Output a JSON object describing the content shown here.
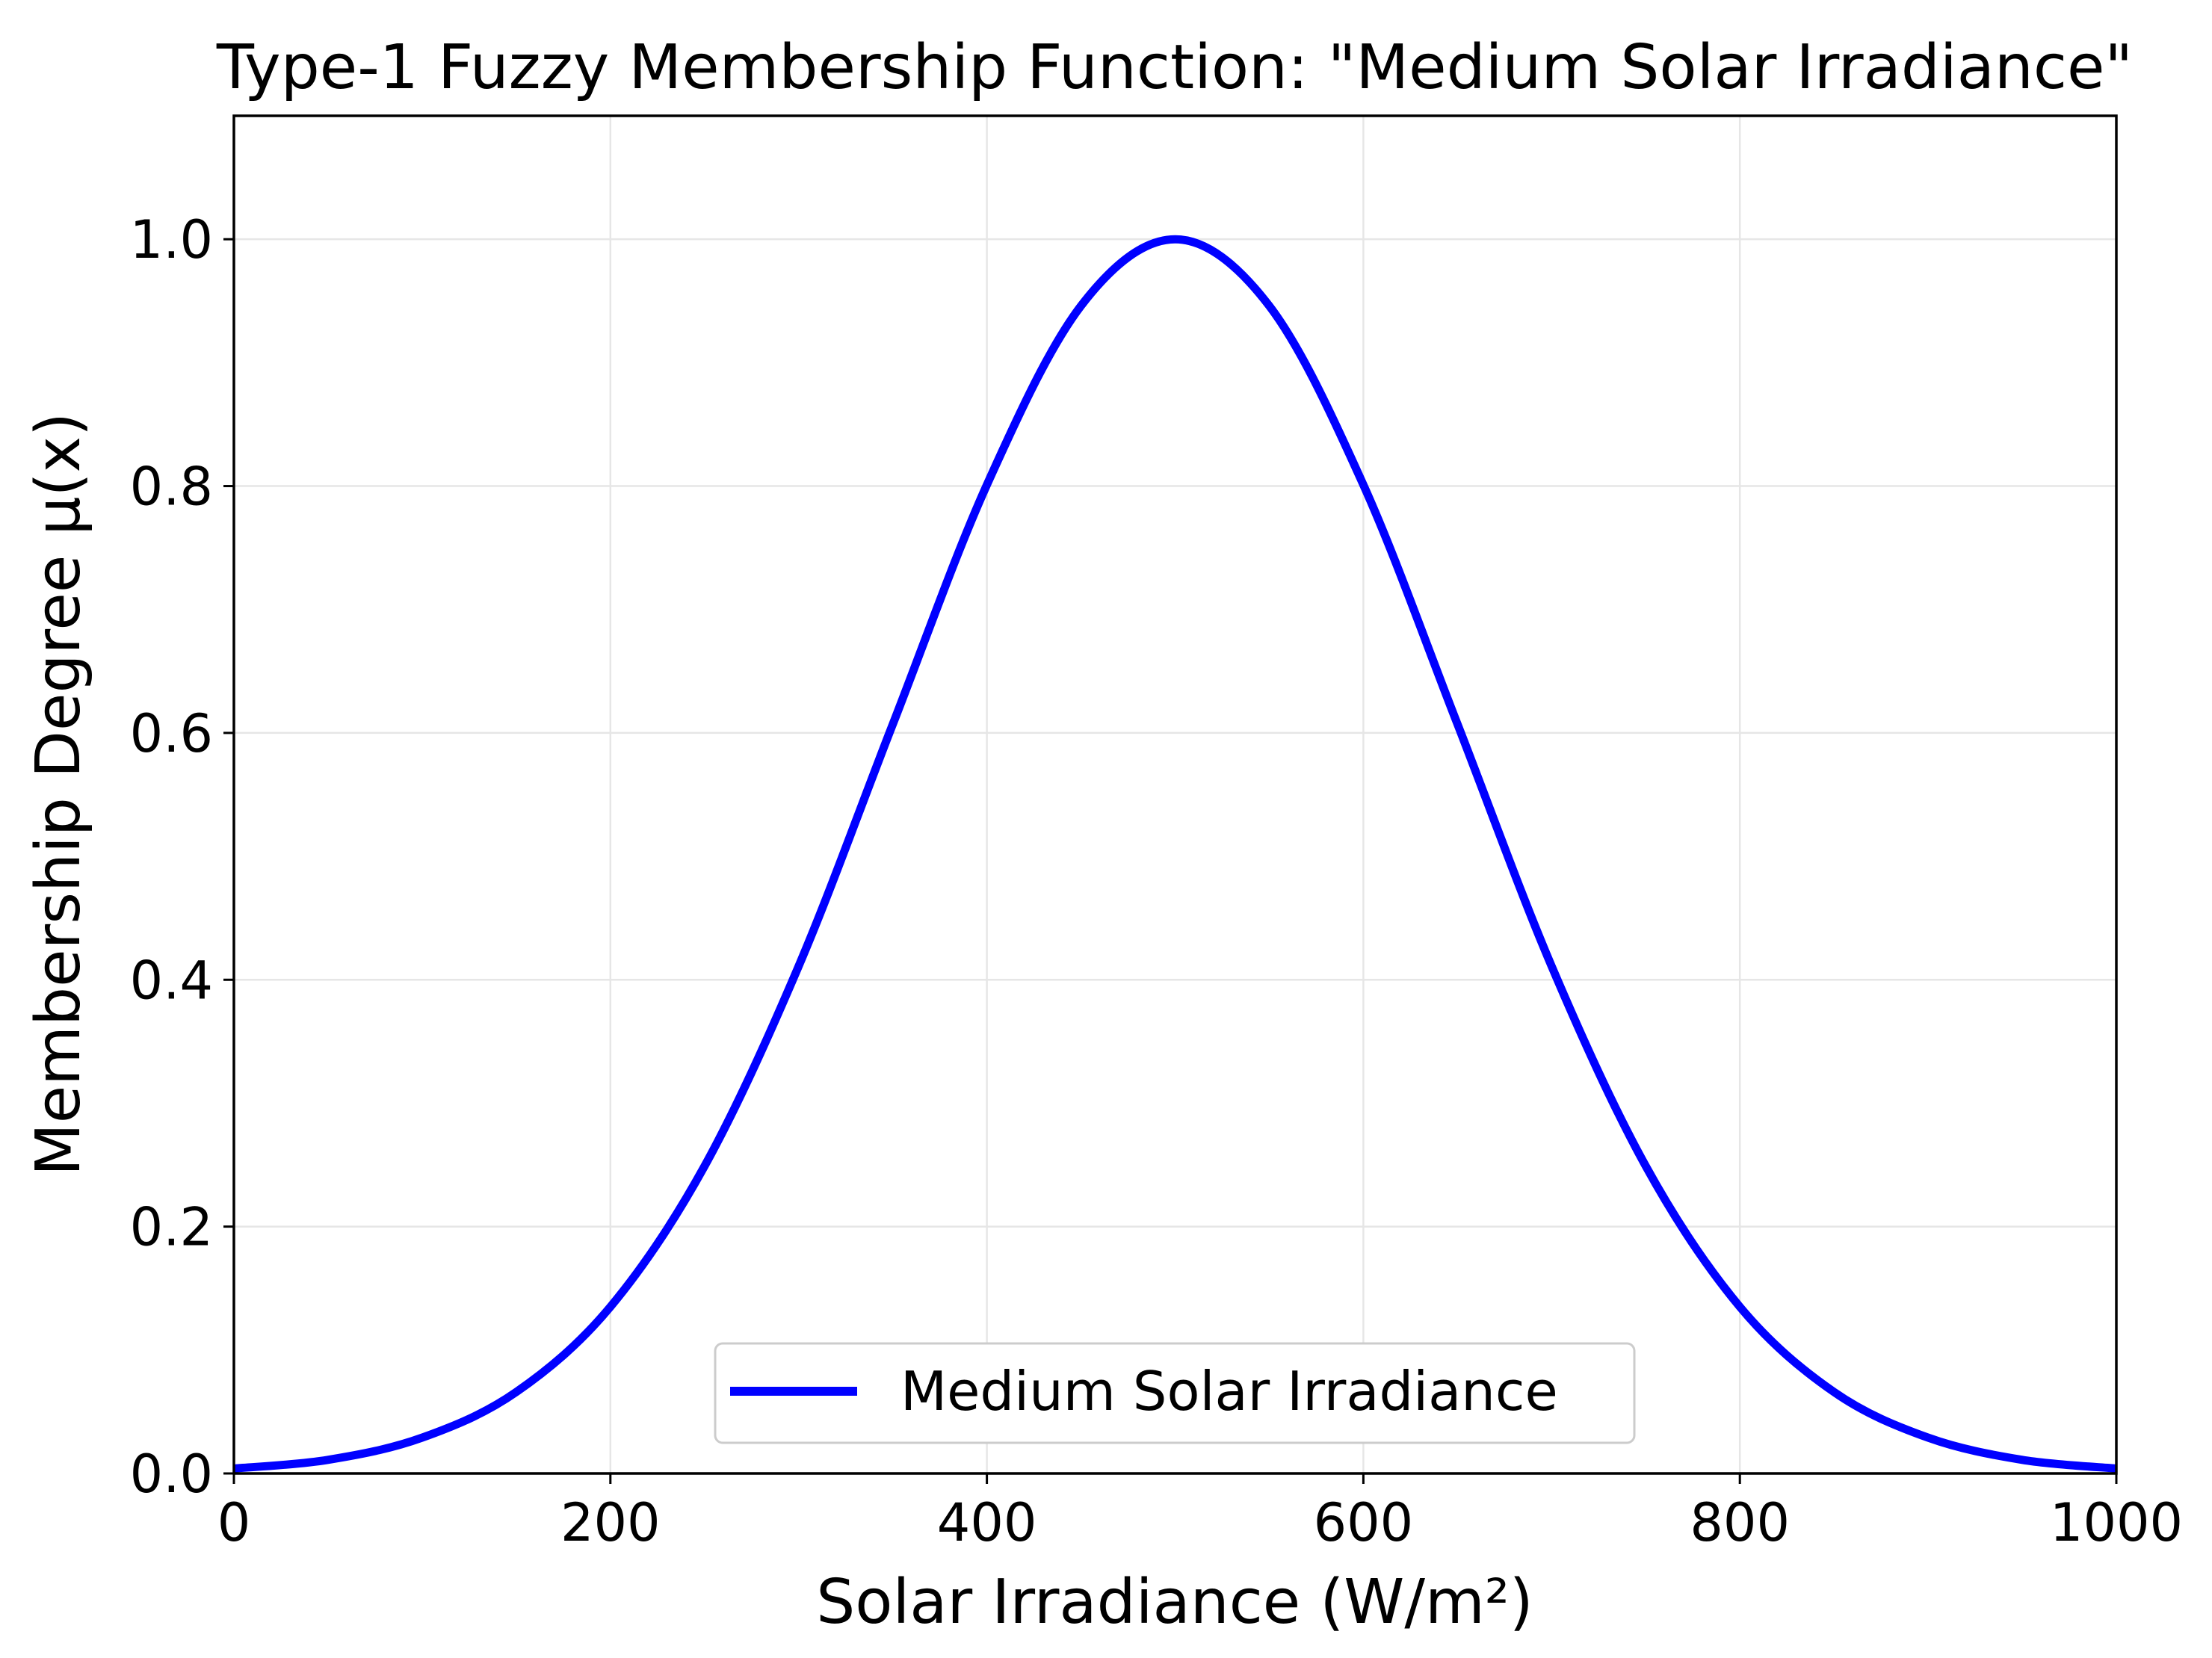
{
  "chart_data": {
    "type": "line",
    "title": "Type-1 Fuzzy Membership Function: \"Medium Solar Irradiance\"",
    "xlabel": "Solar Irradiance (W/m²)",
    "ylabel": "Membership Degree μ(x)",
    "xlim": [
      0,
      1000
    ],
    "ylim": [
      0,
      1.1
    ],
    "grid": true,
    "legend_position": "lower-center",
    "x_ticks": [
      0,
      200,
      400,
      600,
      800,
      1000
    ],
    "x_tick_labels": [
      "0",
      "200",
      "400",
      "600",
      "800",
      "1000"
    ],
    "y_ticks": [
      0.0,
      0.2,
      0.4,
      0.6,
      0.8,
      1.0
    ],
    "y_tick_labels": [
      "0.0",
      "0.2",
      "0.4",
      "0.6",
      "0.8",
      "1.0"
    ],
    "series": [
      {
        "name": "Medium Solar Irradiance",
        "color": "#0000ff",
        "x": [
          0,
          50,
          100,
          150,
          200,
          250,
          300,
          350,
          400,
          450,
          500,
          550,
          600,
          650,
          700,
          750,
          800,
          850,
          900,
          950,
          1000
        ],
        "y": [
          0.004,
          0.011,
          0.029,
          0.066,
          0.135,
          0.249,
          0.411,
          0.607,
          0.801,
          0.946,
          1.0,
          0.946,
          0.801,
          0.607,
          0.411,
          0.249,
          0.135,
          0.066,
          0.029,
          0.011,
          0.004
        ]
      }
    ]
  }
}
